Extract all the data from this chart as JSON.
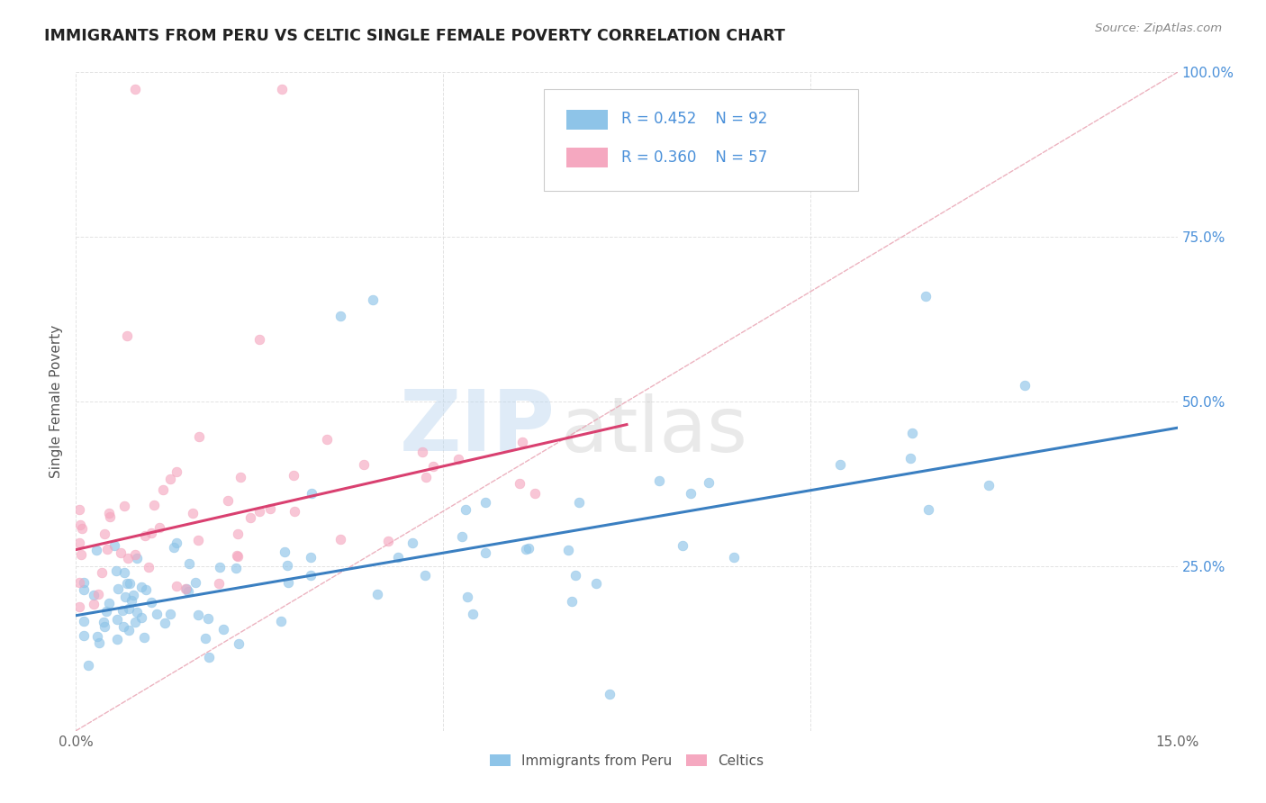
{
  "title": "IMMIGRANTS FROM PERU VS CELTIC SINGLE FEMALE POVERTY CORRELATION CHART",
  "source": "Source: ZipAtlas.com",
  "ylabel": "Single Female Poverty",
  "legend_bottom": [
    "Immigrants from Peru",
    "Celtics"
  ],
  "legend_r1": "R = 0.452",
  "legend_n1": "N = 92",
  "legend_r2": "R = 0.360",
  "legend_n2": "N = 57",
  "xlim": [
    0,
    0.15
  ],
  "ylim": [
    0,
    1.0
  ],
  "xticks": [
    0.0,
    0.05,
    0.1,
    0.15
  ],
  "xtick_labels": [
    "0.0%",
    "",
    "",
    "15.0%"
  ],
  "yticks": [
    0.0,
    0.25,
    0.5,
    0.75,
    1.0
  ],
  "ytick_labels": [
    "",
    "25.0%",
    "50.0%",
    "75.0%",
    "100.0%"
  ],
  "color_blue": "#8ec4e8",
  "color_pink": "#f5a8c0",
  "color_blue_line": "#3a7fc1",
  "color_pink_line": "#d94070",
  "color_dashed": "#e8a0b0",
  "watermark_zip": "ZIP",
  "watermark_atlas": "atlas",
  "background_color": "#ffffff",
  "grid_color": "#e0e0e0",
  "blue_line_x0": 0.0,
  "blue_line_y0": 0.175,
  "blue_line_x1": 0.15,
  "blue_line_y1": 0.46,
  "pink_line_x0": 0.0,
  "pink_line_y0": 0.275,
  "pink_line_x1": 0.075,
  "pink_line_y1": 0.465,
  "title_color": "#222222",
  "source_color": "#888888",
  "tick_color_y": "#4a90d9",
  "tick_color_x": "#666666"
}
